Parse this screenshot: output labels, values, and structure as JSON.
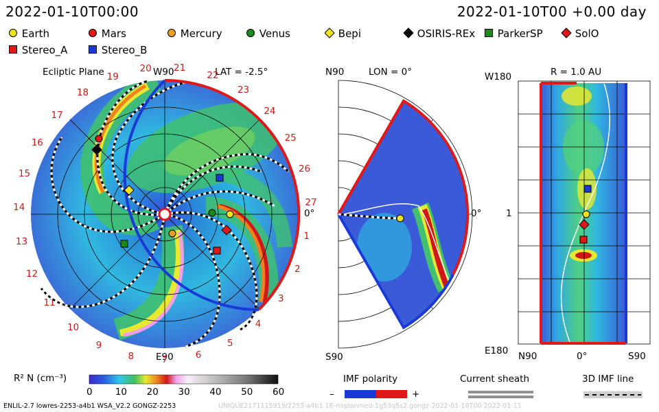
{
  "header": {
    "left_time": "2022-01-10T00:00",
    "right_time": "2022-01-10T00 +0.00 day"
  },
  "legend": [
    {
      "label": "Earth",
      "marker": "circle",
      "color": "#f2e21c"
    },
    {
      "label": "Mars",
      "marker": "circle",
      "color": "#e01818"
    },
    {
      "label": "Mercury",
      "marker": "circle",
      "color": "#e8a020"
    },
    {
      "label": "Venus",
      "marker": "circle",
      "color": "#1a8a1a"
    },
    {
      "label": "Bepi",
      "marker": "diamond",
      "color": "#f2e21c"
    },
    {
      "label": "OSIRIS-REx",
      "marker": "diamond",
      "color": "#000000"
    },
    {
      "label": "ParkerSP",
      "marker": "square",
      "color": "#1a8a1a"
    },
    {
      "label": "SolO",
      "marker": "diamond",
      "color": "#e01818"
    },
    {
      "label": "Stereo_A",
      "marker": "square",
      "color": "#e01818"
    },
    {
      "label": "Stereo_B",
      "marker": "square",
      "color": "#1a3ad8"
    }
  ],
  "chart_data": [
    {
      "type": "heatmap",
      "panel": "ecliptic",
      "title": "Ecliptic Plane",
      "top_label": "W90",
      "bottom_label": "E90",
      "right_label": "0°",
      "lat_label": "LAT = -2.5°",
      "sector_ticks": [
        "19",
        "20",
        "21",
        "22",
        "23",
        "24",
        "25",
        "26",
        "27",
        "1",
        "2",
        "3",
        "4",
        "5",
        "6",
        "7",
        "8",
        "9",
        "10",
        "11",
        "12",
        "13",
        "14",
        "15",
        "16",
        "17",
        "18"
      ]
    },
    {
      "type": "heatmap",
      "panel": "meridional",
      "top_label": "N90",
      "bottom_label": "S90",
      "right_label": "0°",
      "lon_label": "LON = 0°"
    },
    {
      "type": "heatmap",
      "panel": "radial_surface",
      "title": "R = 1.0 AU",
      "top_label": "W180",
      "mid_label": "1",
      "bottom_label": "E180",
      "x_ticks": [
        "N90",
        "0°",
        "S90"
      ]
    }
  ],
  "colorbar": {
    "label": "R² N (cm⁻³)",
    "ticks": [
      "0",
      "10",
      "20",
      "30",
      "40",
      "50",
      "60"
    ],
    "range": [
      0,
      60
    ]
  },
  "imf": {
    "title": "IMF polarity",
    "minus": "–",
    "plus": "+"
  },
  "sheath": {
    "title": "Current sheath"
  },
  "imf3d": {
    "title": "3D IMF line"
  },
  "footer": {
    "left": "ENLIL-2.7 lowres-2253-a4b1 WSA_V2.2 GONGZ-2253",
    "right": "UNIQUE2171115919/2253-a4b1 16-noplanmed-1g53q5s2.gongz-2022-01-10T00 2022-01-11"
  }
}
